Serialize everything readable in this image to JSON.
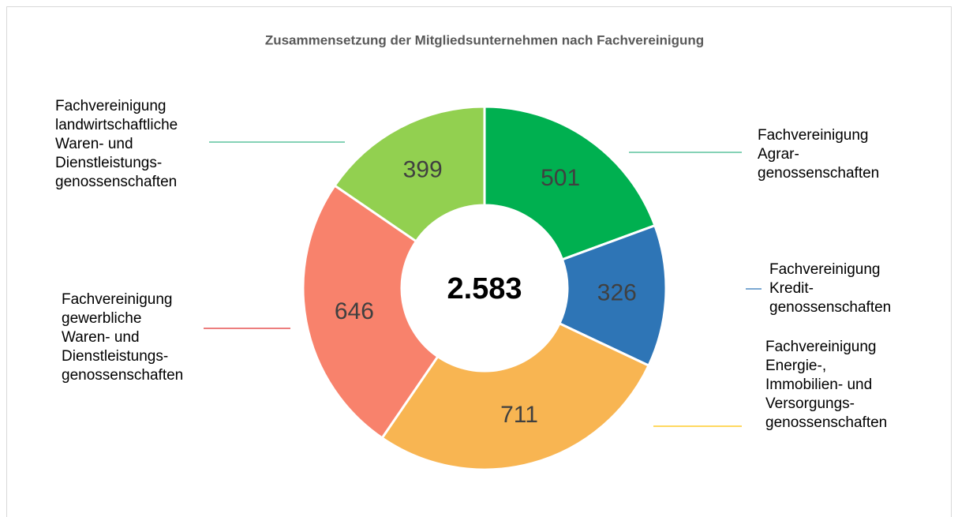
{
  "chart_data": {
    "type": "donut",
    "title": "Zusammensetzung der Mitgliedsunternehmen nach Fachvereinigung",
    "center_text": "2.583",
    "categories": [
      "Fachvereinigung\nAgrar-\ngenossenschaften",
      "Fachvereinigung\nKredit-\ngenossenschaften",
      "Fachvereinigung\nEnergie-,\nImmobilien- und\nVersorgungs-\ngenossenschaften",
      "Fachvereinigung\ngewerbliche\nWaren- und\nDienstleistungs-\ngenossenschaften",
      "Fachvereinigung\nlandwirtschaftliche\nWaren- und\nDienstleistungs-\ngenossenschaften"
    ],
    "values": [
      501,
      326,
      711,
      646,
      399
    ],
    "colors": [
      "#00b050",
      "#2e75b6",
      "#f8b552",
      "#f8826c",
      "#92d050"
    ],
    "leader_colors": [
      "#3cb88a",
      "#2e75b6",
      "#ffc000",
      "#e03030",
      "#3cb88a"
    ]
  }
}
